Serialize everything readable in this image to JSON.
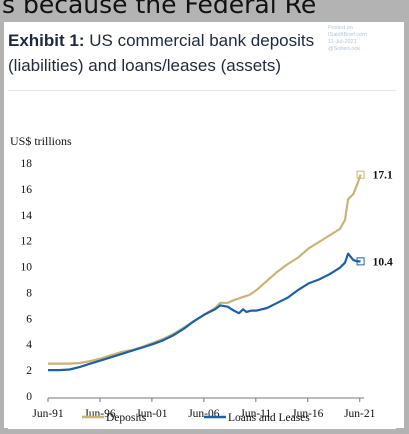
{
  "top_strip_text": "s because the Federal Re",
  "header": {
    "exhibit_label": "Exhibit 1:",
    "title": "US commercial bank deposits (liabilities) and loans/leases (assets)",
    "watermark_lines": [
      "Posted on",
      "ISaidItBrief.com",
      "11-Jul-2021",
      "@SoberLook"
    ]
  },
  "chart_data": {
    "type": "line",
    "ylabel": "US$ trillions",
    "ylim": [
      0,
      18
    ],
    "yticks": [
      0,
      2,
      4,
      6,
      8,
      10,
      12,
      14,
      16,
      18
    ],
    "xlim": [
      1991.42,
      2021.83
    ],
    "xticks": [
      {
        "label": "Jun-91",
        "value": 1991.42
      },
      {
        "label": "Jun-96",
        "value": 1996.42
      },
      {
        "label": "Jun-01",
        "value": 2001.42
      },
      {
        "label": "Jun-06",
        "value": 2006.42
      },
      {
        "label": "Jun-11",
        "value": 2011.42
      },
      {
        "label": "Jun-16",
        "value": 2016.42
      },
      {
        "label": "Jun-21",
        "value": 2021.42
      }
    ],
    "grid": false,
    "legend_position": "bottom",
    "series": [
      {
        "name": "Deposits",
        "color": "#c8b37a",
        "end_label": "17.1",
        "points": [
          [
            1991.42,
            2.5
          ],
          [
            1992.5,
            2.5
          ],
          [
            1993.5,
            2.5
          ],
          [
            1994.5,
            2.55
          ],
          [
            1995.5,
            2.7
          ],
          [
            1996.5,
            2.9
          ],
          [
            1997.5,
            3.15
          ],
          [
            1998.5,
            3.4
          ],
          [
            1999.5,
            3.55
          ],
          [
            2000.5,
            3.8
          ],
          [
            2001.5,
            4.1
          ],
          [
            2002.5,
            4.4
          ],
          [
            2003.5,
            4.8
          ],
          [
            2004.5,
            5.3
          ],
          [
            2005.5,
            5.8
          ],
          [
            2006.5,
            6.3
          ],
          [
            2007.5,
            6.8
          ],
          [
            2008.0,
            7.2
          ],
          [
            2008.7,
            7.2
          ],
          [
            2009.3,
            7.4
          ],
          [
            2010.0,
            7.6
          ],
          [
            2010.8,
            7.8
          ],
          [
            2011.5,
            8.2
          ],
          [
            2012.5,
            8.9
          ],
          [
            2013.5,
            9.6
          ],
          [
            2014.5,
            10.2
          ],
          [
            2015.5,
            10.7
          ],
          [
            2016.5,
            11.4
          ],
          [
            2017.5,
            11.9
          ],
          [
            2018.5,
            12.4
          ],
          [
            2019.5,
            12.9
          ],
          [
            2020.0,
            13.6
          ],
          [
            2020.3,
            15.2
          ],
          [
            2020.8,
            15.6
          ],
          [
            2021.2,
            16.4
          ],
          [
            2021.5,
            17.1
          ]
        ]
      },
      {
        "name": "Loans and Leases",
        "color": "#1f5fa6",
        "end_label": "10.4",
        "points": [
          [
            1991.42,
            2.0
          ],
          [
            1992.5,
            2.0
          ],
          [
            1993.5,
            2.05
          ],
          [
            1994.5,
            2.25
          ],
          [
            1995.5,
            2.5
          ],
          [
            1996.5,
            2.75
          ],
          [
            1997.5,
            3.0
          ],
          [
            1998.5,
            3.25
          ],
          [
            1999.5,
            3.5
          ],
          [
            2000.5,
            3.75
          ],
          [
            2001.5,
            4.0
          ],
          [
            2002.5,
            4.3
          ],
          [
            2003.5,
            4.7
          ],
          [
            2004.5,
            5.2
          ],
          [
            2005.5,
            5.8
          ],
          [
            2006.5,
            6.3
          ],
          [
            2007.5,
            6.7
          ],
          [
            2008.0,
            7.0
          ],
          [
            2008.7,
            6.9
          ],
          [
            2009.3,
            6.6
          ],
          [
            2009.8,
            6.4
          ],
          [
            2010.2,
            6.7
          ],
          [
            2010.5,
            6.5
          ],
          [
            2011.0,
            6.6
          ],
          [
            2011.5,
            6.6
          ],
          [
            2012.5,
            6.8
          ],
          [
            2013.5,
            7.2
          ],
          [
            2014.5,
            7.6
          ],
          [
            2015.5,
            8.2
          ],
          [
            2016.5,
            8.7
          ],
          [
            2017.5,
            9.0
          ],
          [
            2018.5,
            9.4
          ],
          [
            2019.5,
            9.9
          ],
          [
            2020.0,
            10.3
          ],
          [
            2020.3,
            11.0
          ],
          [
            2020.8,
            10.5
          ],
          [
            2021.2,
            10.4
          ],
          [
            2021.5,
            10.4
          ]
        ]
      }
    ]
  }
}
